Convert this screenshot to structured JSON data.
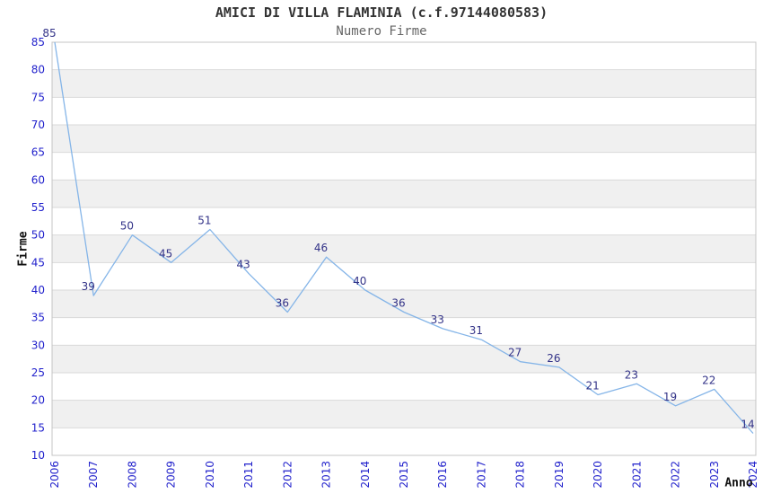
{
  "chart_data": {
    "type": "line",
    "title": "AMICI DI VILLA FLAMINIA (c.f.97144080583)",
    "subtitle": "Numero Firme",
    "xlabel": "Anno",
    "ylabel": "Firme",
    "categories": [
      "2006",
      "2007",
      "2008",
      "2009",
      "2010",
      "2011",
      "2012",
      "2013",
      "2014",
      "2015",
      "2016",
      "2017",
      "2018",
      "2019",
      "2020",
      "2021",
      "2022",
      "2023",
      "2024"
    ],
    "values": [
      85,
      39,
      50,
      45,
      51,
      43,
      36,
      46,
      40,
      36,
      33,
      31,
      27,
      26,
      21,
      23,
      19,
      22,
      14
    ],
    "ylim": [
      10,
      85
    ],
    "ytick_step": 5,
    "grid": true,
    "legend_position": "none",
    "data_labels": true,
    "background_bands": "alternating horizontal stripes every 5 units (gray on 15-20, 25-30, 35-40, 45-50, 55-60, 65-70, 75-80)",
    "colors": {
      "line": "#85b5e8",
      "tick_label": "#2222cc",
      "data_label": "#333388",
      "band_fill": "#f0f0f0",
      "gridline": "#d9d9d9",
      "plot_border": "#c4c4c4",
      "title": "#333333",
      "subtitle": "#666666",
      "axis_title": "#111111",
      "plot_background": "#ffffff"
    }
  }
}
